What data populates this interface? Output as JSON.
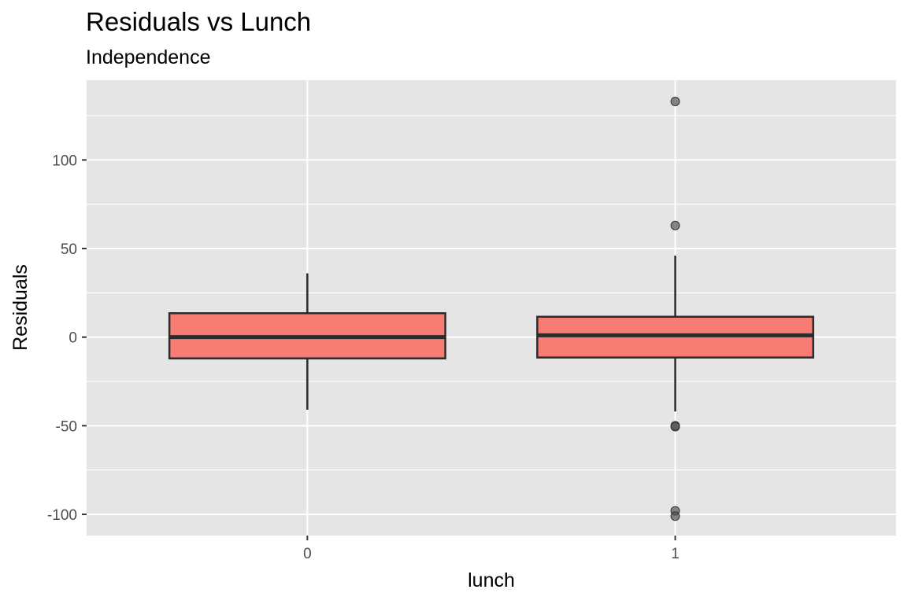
{
  "chart_data": {
    "type": "box",
    "title": "Residuals vs Lunch",
    "subtitle": "Independence",
    "xlabel": "lunch",
    "ylabel": "Residuals",
    "categories": [
      "0",
      "1"
    ],
    "ylim": [
      -112,
      145
    ],
    "y_ticks": [
      -100,
      -50,
      0,
      50,
      100
    ],
    "grid": true,
    "boxes": [
      {
        "category": "0",
        "whisker_low": -41,
        "q1": -12,
        "median": 0,
        "q3": 13.5,
        "whisker_high": 36,
        "outliers": []
      },
      {
        "category": "1",
        "whisker_low": -42,
        "q1": -11.5,
        "median": 1,
        "q3": 11.5,
        "whisker_high": 46,
        "outliers": [
          133,
          63,
          -50,
          -50.5,
          -98,
          -101
        ]
      }
    ],
    "colors": {
      "box_fill": "#F8766D",
      "box_fill_opacity": 0.95,
      "box_stroke": "#2b2b2b",
      "outlier": "#4a4a4a",
      "panel_bg": "#e5e5e5",
      "grid": "#ffffff"
    }
  }
}
